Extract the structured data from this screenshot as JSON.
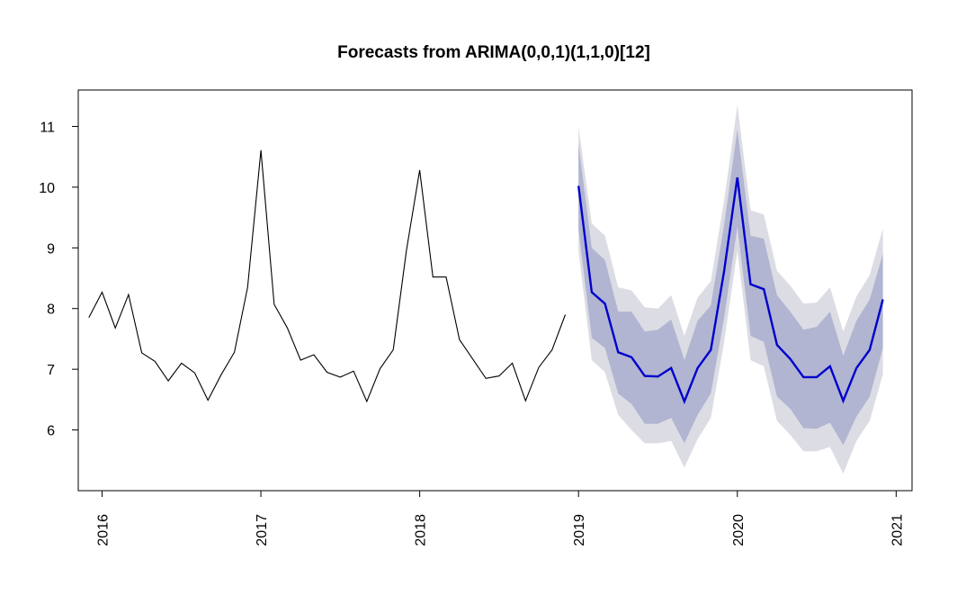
{
  "chart_data": {
    "type": "line",
    "title": "Forecasts from ARIMA(0,0,1)(1,1,0)[12]",
    "xlabel": "",
    "ylabel": "",
    "xlim": [
      2015.85,
      2021.1
    ],
    "ylim": [
      5,
      11.6
    ],
    "x_ticks": [
      2016,
      2017,
      2018,
      2019,
      2020,
      2021
    ],
    "x_tick_labels": [
      "2016",
      "2017",
      "2018",
      "2019",
      "2020",
      "2021"
    ],
    "y_ticks": [
      6,
      7,
      8,
      9,
      10,
      11
    ],
    "y_tick_labels": [
      "6",
      "7",
      "8",
      "9",
      "10",
      "11"
    ],
    "grid": false,
    "legend": "none",
    "colors": {
      "observed": "#000000",
      "forecast": "#0000cc",
      "band80": "#b1b5d1",
      "band95": "#dcdce4"
    },
    "series": [
      {
        "role": "observed",
        "x_start": 2015.9167,
        "x_step": 0.08333,
        "values": [
          7.85,
          8.27,
          7.68,
          8.23,
          7.27,
          7.13,
          6.81,
          7.1,
          6.94,
          6.49,
          6.91,
          7.28,
          8.35,
          10.61,
          8.07,
          7.68,
          7.15,
          7.24,
          6.95,
          6.87,
          6.97,
          6.47,
          7.01,
          7.32,
          8.96,
          10.28,
          8.52,
          8.52,
          7.49,
          7.17,
          6.85,
          6.89,
          7.1,
          6.48,
          7.03,
          7.32,
          7.9
        ]
      },
      {
        "role": "forecast",
        "x_start": 2019.0,
        "x_step": 0.08333,
        "values": [
          10.02,
          8.27,
          8.08,
          7.28,
          7.2,
          6.89,
          6.88,
          7.02,
          6.47,
          7.02,
          7.32,
          8.62,
          10.16,
          8.4,
          8.32,
          7.4,
          7.17,
          6.87,
          6.87,
          7.05,
          6.48,
          7.02,
          7.32,
          8.15
        ],
        "lo80": [
          9.3,
          7.52,
          7.35,
          6.6,
          6.43,
          6.1,
          6.1,
          6.2,
          5.78,
          6.25,
          6.6,
          7.85,
          9.35,
          7.55,
          7.45,
          6.55,
          6.35,
          6.03,
          6.02,
          6.12,
          5.75,
          6.22,
          6.55,
          7.35
        ],
        "hi80": [
          10.72,
          9.0,
          8.8,
          7.95,
          7.95,
          7.62,
          7.65,
          7.82,
          7.15,
          7.8,
          8.05,
          9.38,
          10.95,
          9.2,
          9.15,
          8.22,
          7.95,
          7.65,
          7.7,
          7.95,
          7.22,
          7.8,
          8.15,
          8.9
        ],
        "lo95": [
          8.95,
          7.15,
          6.95,
          6.25,
          6.0,
          5.78,
          5.78,
          5.82,
          5.38,
          5.85,
          6.2,
          7.45,
          8.95,
          7.15,
          7.05,
          6.15,
          5.92,
          5.65,
          5.65,
          5.72,
          5.28,
          5.82,
          6.15,
          6.92
        ],
        "hi95": [
          11.0,
          9.4,
          9.2,
          8.35,
          8.3,
          8.02,
          8.0,
          8.22,
          7.55,
          8.18,
          8.45,
          9.78,
          11.35,
          9.62,
          9.55,
          8.62,
          8.38,
          8.08,
          8.1,
          8.35,
          7.62,
          8.2,
          8.55,
          9.32
        ]
      }
    ]
  }
}
